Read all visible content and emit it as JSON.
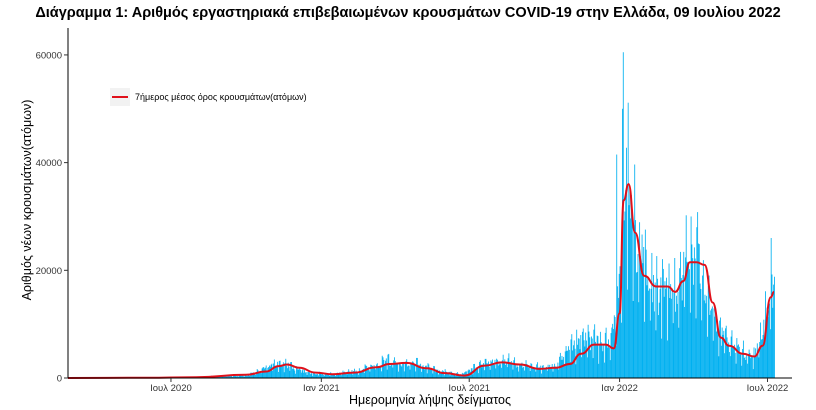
{
  "chart_data": {
    "type": "bar",
    "title": "Διάγραμμα 1: Αριθμός εργαστηριακά επιβεβαιωμένων κρουσμάτων COVID-19 στην Ελλάδα, 09 Ιουλίου 2022",
    "xlabel": "Ημερομηνία λήψης δείγματος",
    "ylabel": "Αριθμός νέων κρουσμάτων(ατόμων)",
    "ylim": [
      0,
      65000
    ],
    "xlim": [
      "2020-02-26",
      "2022-07-31"
    ],
    "y_ticks": [
      0,
      20000,
      40000,
      60000
    ],
    "y_tick_labels": [
      "0",
      "20000",
      "40000",
      "60000"
    ],
    "x_ticks": [
      "2020-07-01",
      "2021-01-01",
      "2021-07-01",
      "2022-01-01",
      "2022-07-01"
    ],
    "x_tick_labels": [
      "Ιουλ 2020",
      "Ιαν 2021",
      "Ιουλ 2021",
      "Ιαν 2022",
      "Ιουλ 2022"
    ],
    "grid": false,
    "legend_position": "top-left",
    "series": [
      {
        "name": "daily cases",
        "kind": "bar",
        "color": "#00b0f0",
        "daily_shape": {
          "dates": [
            "2020-02-26",
            "2020-07-01",
            "2020-08-01",
            "2020-10-01",
            "2020-11-05",
            "2020-11-20",
            "2020-12-20",
            "2021-01-15",
            "2021-02-15",
            "2021-03-20",
            "2021-04-20",
            "2021-05-20",
            "2021-06-20",
            "2021-07-20",
            "2021-08-15",
            "2021-09-15",
            "2021-10-15",
            "2021-11-01",
            "2021-11-20",
            "2021-12-20",
            "2022-01-01",
            "2022-01-08",
            "2022-01-20",
            "2022-02-05",
            "2022-02-25",
            "2022-03-10",
            "2022-03-25",
            "2022-04-10",
            "2022-05-01",
            "2022-05-20",
            "2022-06-15",
            "2022-07-09"
          ],
          "values": [
            30,
            100,
            200,
            500,
            2600,
            2400,
            800,
            700,
            1400,
            3000,
            2900,
            1500,
            600,
            2700,
            3200,
            1900,
            2200,
            5200,
            7200,
            6000,
            18000,
            36000,
            27000,
            17000,
            15000,
            17000,
            21500,
            21000,
            8500,
            5500,
            4000,
            17000
          ]
        },
        "notable_days": [
          {
            "date": "2022-01-05",
            "value": 60500
          },
          {
            "date": "2022-01-04",
            "value": 50000
          },
          {
            "date": "2022-03-29",
            "value": 30000
          },
          {
            "date": "2022-04-05",
            "value": 28000
          },
          {
            "date": "2022-07-05",
            "value": 26000
          },
          {
            "date": "2021-12-28",
            "value": 41500
          }
        ]
      },
      {
        "name": "7ήμερος μέσος όρος κρουσμάτων(ατόμων)",
        "kind": "line",
        "color": "#e0101a",
        "points": {
          "x": [
            "2020-02-26",
            "2020-06-01",
            "2020-08-01",
            "2020-10-01",
            "2020-10-25",
            "2020-11-10",
            "2020-11-20",
            "2020-12-05",
            "2020-12-25",
            "2021-01-15",
            "2021-02-10",
            "2021-03-10",
            "2021-03-25",
            "2021-04-15",
            "2021-05-10",
            "2021-06-01",
            "2021-06-25",
            "2021-07-20",
            "2021-08-10",
            "2021-09-01",
            "2021-09-25",
            "2021-10-15",
            "2021-11-01",
            "2021-11-15",
            "2021-12-01",
            "2021-12-15",
            "2021-12-25",
            "2022-01-01",
            "2022-01-06",
            "2022-01-12",
            "2022-01-20",
            "2022-01-31",
            "2022-02-15",
            "2022-03-01",
            "2022-03-10",
            "2022-03-20",
            "2022-03-28",
            "2022-04-05",
            "2022-04-15",
            "2022-04-25",
            "2022-05-05",
            "2022-05-15",
            "2022-06-01",
            "2022-06-15",
            "2022-06-25",
            "2022-07-05",
            "2022-07-09"
          ],
          "y": [
            0,
            50,
            150,
            600,
            1200,
            2200,
            2500,
            1900,
            1000,
            700,
            1000,
            2000,
            2600,
            2800,
            1800,
            900,
            450,
            2300,
            2900,
            2500,
            1700,
            1900,
            2600,
            4500,
            6200,
            6200,
            5500,
            12000,
            33000,
            36000,
            27000,
            19000,
            17000,
            17000,
            16000,
            18000,
            21500,
            21500,
            21000,
            14000,
            7500,
            6000,
            4500,
            4000,
            6000,
            15000,
            16000
          ]
        }
      }
    ]
  }
}
